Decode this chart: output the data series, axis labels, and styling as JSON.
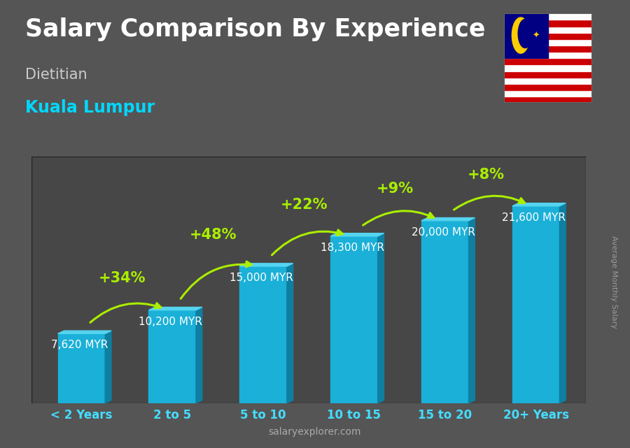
{
  "title": "Salary Comparison By Experience",
  "subtitle1": "Dietitian",
  "subtitle2": "Kuala Lumpur",
  "ylabel": "Average Monthly Salary",
  "footer_bold": "salary",
  "footer_regular": "explorer.com",
  "categories": [
    "< 2 Years",
    "2 to 5",
    "5 to 10",
    "10 to 15",
    "15 to 20",
    "20+ Years"
  ],
  "values": [
    7620,
    10200,
    15000,
    18300,
    20000,
    21600
  ],
  "value_labels": [
    "7,620 MYR",
    "10,200 MYR",
    "15,000 MYR",
    "18,300 MYR",
    "20,000 MYR",
    "21,600 MYR"
  ],
  "pct_labels": [
    "+34%",
    "+48%",
    "+22%",
    "+9%",
    "+8%"
  ],
  "bar_color_face": "#1ab0d8",
  "bar_color_top": "#55d4f0",
  "bar_color_side": "#0e7fa0",
  "bg_dark": "#3a3a3a",
  "bg_mid": "#555555",
  "title_color": "#ffffff",
  "subtitle1_color": "#cccccc",
  "subtitle2_color": "#00d8ff",
  "value_label_color": "#ffffff",
  "pct_color": "#aaee00",
  "cat_label_color": "#44ddff",
  "ylabel_color": "#999999",
  "footer_color": "#aaaaaa",
  "footer_bold_color": "#ffffff",
  "ylim": [
    0,
    27000
  ],
  "title_fontsize": 25,
  "subtitle1_fontsize": 15,
  "subtitle2_fontsize": 17,
  "cat_fontsize": 12,
  "val_fontsize": 11,
  "pct_fontsize": 15,
  "ylabel_fontsize": 8
}
